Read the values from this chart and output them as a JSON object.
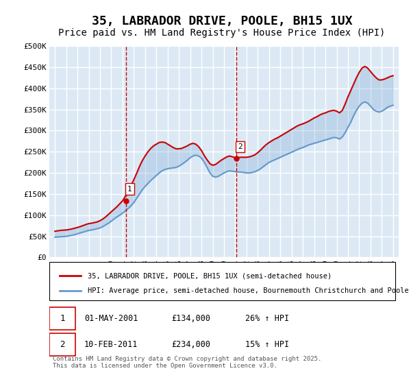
{
  "title": "35, LABRADOR DRIVE, POOLE, BH15 1UX",
  "subtitle": "Price paid vs. HM Land Registry's House Price Index (HPI)",
  "ylabel": "",
  "ylim": [
    0,
    500000
  ],
  "yticks": [
    0,
    50000,
    100000,
    150000,
    200000,
    250000,
    300000,
    350000,
    400000,
    450000,
    500000
  ],
  "ytick_labels": [
    "£0",
    "£50K",
    "£100K",
    "£150K",
    "£200K",
    "£250K",
    "£300K",
    "£350K",
    "£400K",
    "£450K",
    "£500K"
  ],
  "xlim_start": 1994.5,
  "xlim_end": 2025.5,
  "background_color": "#dce9f5",
  "plot_bg_color": "#dce9f5",
  "grid_color": "#ffffff",
  "red_color": "#cc0000",
  "blue_color": "#6699cc",
  "title_fontsize": 13,
  "subtitle_fontsize": 10,
  "purchase1_x": 2001.33,
  "purchase1_y": 134000,
  "purchase2_x": 2011.12,
  "purchase2_y": 234000,
  "legend1": "35, LABRADOR DRIVE, POOLE, BH15 1UX (semi-detached house)",
  "legend2": "HPI: Average price, semi-detached house, Bournemouth Christchurch and Poole",
  "annotation1_label": "1",
  "annotation2_label": "2",
  "table_row1": [
    "1",
    "01-MAY-2001",
    "£134,000",
    "26% ↑ HPI"
  ],
  "table_row2": [
    "2",
    "10-FEB-2011",
    "£234,000",
    "15% ↑ HPI"
  ],
  "footnote": "Contains HM Land Registry data © Crown copyright and database right 2025.\nThis data is licensed under the Open Government Licence v3.0.",
  "hpi_years": [
    1995,
    1995.25,
    1995.5,
    1995.75,
    1996,
    1996.25,
    1996.5,
    1996.75,
    1997,
    1997.25,
    1997.5,
    1997.75,
    1998,
    1998.25,
    1998.5,
    1998.75,
    1999,
    1999.25,
    1999.5,
    1999.75,
    2000,
    2000.25,
    2000.5,
    2000.75,
    2001,
    2001.25,
    2001.5,
    2001.75,
    2002,
    2002.25,
    2002.5,
    2002.75,
    2003,
    2003.25,
    2003.5,
    2003.75,
    2004,
    2004.25,
    2004.5,
    2004.75,
    2005,
    2005.25,
    2005.5,
    2005.75,
    2006,
    2006.25,
    2006.5,
    2006.75,
    2007,
    2007.25,
    2007.5,
    2007.75,
    2008,
    2008.25,
    2008.5,
    2008.75,
    2009,
    2009.25,
    2009.5,
    2009.75,
    2010,
    2010.25,
    2010.5,
    2010.75,
    2011,
    2011.25,
    2011.5,
    2011.75,
    2012,
    2012.25,
    2012.5,
    2012.75,
    2013,
    2013.25,
    2013.5,
    2013.75,
    2014,
    2014.25,
    2014.5,
    2014.75,
    2015,
    2015.25,
    2015.5,
    2015.75,
    2016,
    2016.25,
    2016.5,
    2016.75,
    2017,
    2017.25,
    2017.5,
    2017.75,
    2018,
    2018.25,
    2018.5,
    2018.75,
    2019,
    2019.25,
    2019.5,
    2019.75,
    2020,
    2020.25,
    2020.5,
    2020.75,
    2021,
    2021.25,
    2021.5,
    2021.75,
    2022,
    2022.25,
    2022.5,
    2022.75,
    2023,
    2023.25,
    2023.5,
    2023.75,
    2024,
    2024.25,
    2024.5,
    2024.75,
    2025
  ],
  "hpi_values": [
    48000,
    48500,
    49000,
    49500,
    50000,
    51000,
    52500,
    54000,
    56000,
    58000,
    60000,
    62000,
    64000,
    65000,
    66500,
    68000,
    70000,
    73000,
    77000,
    81000,
    86000,
    91000,
    96000,
    100000,
    105000,
    110000,
    116000,
    122000,
    130000,
    140000,
    150000,
    160000,
    168000,
    175000,
    182000,
    188000,
    194000,
    200000,
    205000,
    208000,
    210000,
    211000,
    212000,
    213000,
    216000,
    220000,
    225000,
    230000,
    236000,
    240000,
    242000,
    240000,
    235000,
    225000,
    213000,
    200000,
    192000,
    190000,
    192000,
    196000,
    200000,
    203000,
    205000,
    204000,
    203000,
    202000,
    202000,
    201000,
    200000,
    200000,
    201000,
    203000,
    206000,
    210000,
    215000,
    220000,
    225000,
    228000,
    231000,
    234000,
    237000,
    240000,
    243000,
    246000,
    249000,
    252000,
    255000,
    258000,
    260000,
    263000,
    266000,
    268000,
    270000,
    272000,
    274000,
    276000,
    278000,
    280000,
    282000,
    284000,
    283000,
    280000,
    285000,
    295000,
    308000,
    320000,
    335000,
    348000,
    358000,
    365000,
    368000,
    365000,
    358000,
    350000,
    346000,
    344000,
    346000,
    350000,
    355000,
    358000,
    360000
  ],
  "price_years": [
    1995,
    1995.25,
    1995.5,
    1995.75,
    1996,
    1996.25,
    1996.5,
    1996.75,
    1997,
    1997.25,
    1997.5,
    1997.75,
    1998,
    1998.25,
    1998.5,
    1998.75,
    1999,
    1999.25,
    1999.5,
    1999.75,
    2000,
    2000.25,
    2000.5,
    2000.75,
    2001,
    2001.25,
    2001.5,
    2001.75,
    2002,
    2002.25,
    2002.5,
    2002.75,
    2003,
    2003.25,
    2003.5,
    2003.75,
    2004,
    2004.25,
    2004.5,
    2004.75,
    2005,
    2005.25,
    2005.5,
    2005.75,
    2006,
    2006.25,
    2006.5,
    2006.75,
    2007,
    2007.25,
    2007.5,
    2007.75,
    2008,
    2008.25,
    2008.5,
    2008.75,
    2009,
    2009.25,
    2009.5,
    2009.75,
    2010,
    2010.25,
    2010.5,
    2010.75,
    2011,
    2011.25,
    2011.5,
    2011.75,
    2012,
    2012.25,
    2012.5,
    2012.75,
    2013,
    2013.25,
    2013.5,
    2013.75,
    2014,
    2014.25,
    2014.5,
    2014.75,
    2015,
    2015.25,
    2015.5,
    2015.75,
    2016,
    2016.25,
    2016.5,
    2016.75,
    2017,
    2017.25,
    2017.5,
    2017.75,
    2018,
    2018.25,
    2018.5,
    2018.75,
    2019,
    2019.25,
    2019.5,
    2019.75,
    2020,
    2020.25,
    2020.5,
    2020.75,
    2021,
    2021.25,
    2021.5,
    2021.75,
    2022,
    2022.25,
    2022.5,
    2022.75,
    2023,
    2023.25,
    2023.5,
    2023.75,
    2024,
    2024.25,
    2024.5,
    2024.75,
    2025
  ],
  "price_values": [
    62000,
    63000,
    64000,
    64500,
    65000,
    66000,
    67500,
    69000,
    71000,
    73000,
    75500,
    78000,
    80000,
    81000,
    82500,
    84000,
    87000,
    91000,
    96000,
    102000,
    108000,
    114000,
    120000,
    127000,
    134000,
    145000,
    157000,
    170000,
    184000,
    199000,
    215000,
    229000,
    240000,
    250000,
    258000,
    264000,
    268000,
    272000,
    273000,
    272000,
    268000,
    264000,
    260000,
    257000,
    257000,
    258000,
    261000,
    264000,
    268000,
    270000,
    268000,
    262000,
    253000,
    241000,
    231000,
    222000,
    218000,
    220000,
    225000,
    230000,
    234000,
    238000,
    240000,
    238000,
    236000,
    236000,
    237000,
    237000,
    237000,
    238000,
    240000,
    243000,
    248000,
    254000,
    261000,
    267000,
    272000,
    276000,
    280000,
    283000,
    287000,
    291000,
    295000,
    299000,
    303000,
    307000,
    311000,
    314000,
    316000,
    319000,
    322000,
    326000,
    330000,
    333000,
    337000,
    340000,
    342000,
    345000,
    347000,
    348000,
    346000,
    342000,
    348000,
    363000,
    380000,
    395000,
    410000,
    425000,
    438000,
    448000,
    452000,
    448000,
    440000,
    432000,
    425000,
    420000,
    420000,
    422000,
    425000,
    428000,
    430000
  ]
}
